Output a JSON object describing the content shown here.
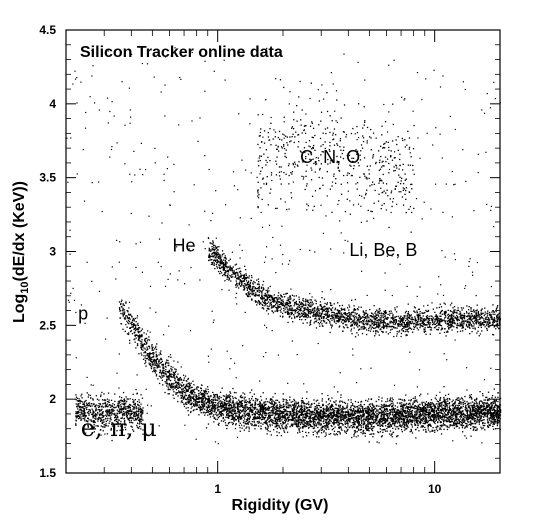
{
  "chart_data": {
    "type": "scatter",
    "title": "Silicon Tracker online data",
    "xlabel": "Rigidity (GV)",
    "ylabel": "Log10(dE/dx (KeV))",
    "ylabel_main": "Log",
    "ylabel_sub": "10",
    "ylabel_rest": "(dE/dx (KeV))",
    "x_scale": "log",
    "xlim": [
      0.2,
      20
    ],
    "ylim": [
      1.5,
      4.5
    ],
    "x_ticks": [
      {
        "value": 1,
        "label": "1"
      },
      {
        "value": 10,
        "label": "10"
      }
    ],
    "y_ticks": [
      {
        "value": 1.5,
        "label": "1.5"
      },
      {
        "value": 2,
        "label": "2"
      },
      {
        "value": 2.5,
        "label": "2.5"
      },
      {
        "value": 3,
        "label": "3"
      },
      {
        "value": 3.5,
        "label": "3.5"
      },
      {
        "value": 4,
        "label": "4"
      },
      {
        "value": 4.5,
        "label": "4.5"
      }
    ],
    "annotations": [
      {
        "text": "C, N, O",
        "x": 3.3,
        "y": 3.6,
        "style": "sans"
      },
      {
        "text": "He",
        "x": 0.7,
        "y": 3.0,
        "style": "sans"
      },
      {
        "text": "Li, Be, B",
        "x": 5.8,
        "y": 2.97,
        "style": "sans"
      },
      {
        "text": "p",
        "x": 0.24,
        "y": 2.54,
        "style": "sans"
      },
      {
        "text": "e, π, μ",
        "x": 0.35,
        "y": 1.75,
        "style": "serif"
      }
    ],
    "series": [
      {
        "name": "e, π, μ",
        "points": [
          [
            0.22,
            1.93
          ],
          [
            0.26,
            1.92
          ],
          [
            0.3,
            1.91
          ],
          [
            0.35,
            1.9
          ],
          [
            0.4,
            1.92
          ],
          [
            0.45,
            1.9
          ]
        ]
      },
      {
        "name": "p",
        "points": [
          [
            0.35,
            2.62
          ],
          [
            0.4,
            2.52
          ],
          [
            0.45,
            2.38
          ],
          [
            0.5,
            2.27
          ],
          [
            0.6,
            2.15
          ],
          [
            0.7,
            2.06
          ],
          [
            0.8,
            2.0
          ],
          [
            1.0,
            1.95
          ],
          [
            1.5,
            1.91
          ],
          [
            2,
            1.9
          ],
          [
            3,
            1.89
          ],
          [
            5,
            1.88
          ],
          [
            8,
            1.9
          ],
          [
            12,
            1.91
          ],
          [
            20,
            1.92
          ]
        ]
      },
      {
        "name": "He",
        "points": [
          [
            0.9,
            3.02
          ],
          [
            1.0,
            2.95
          ],
          [
            1.2,
            2.84
          ],
          [
            1.5,
            2.72
          ],
          [
            2,
            2.64
          ],
          [
            3,
            2.58
          ],
          [
            4,
            2.55
          ],
          [
            6,
            2.53
          ],
          [
            10,
            2.54
          ],
          [
            15,
            2.55
          ],
          [
            20,
            2.55
          ]
        ]
      },
      {
        "name": "C, N, O",
        "points": [
          [
            1.5,
            3.6
          ],
          [
            2,
            3.7
          ],
          [
            3,
            3.7
          ],
          [
            5,
            3.6
          ],
          [
            8,
            3.5
          ]
        ]
      }
    ],
    "grid": false,
    "legend": "none"
  }
}
